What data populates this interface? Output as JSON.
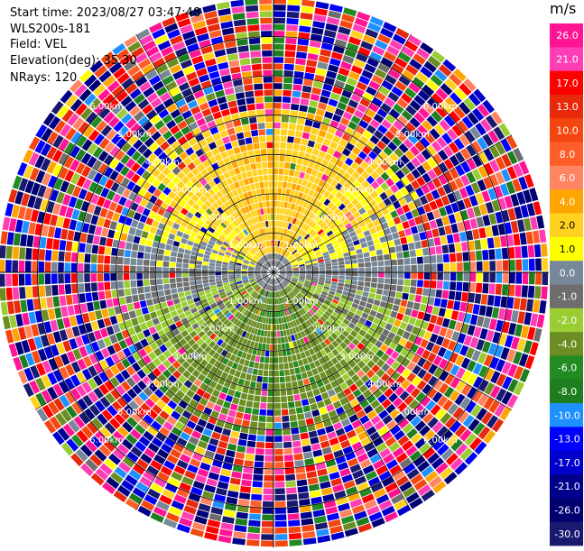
{
  "info": {
    "start_time": "Start time: 2023/08/27 03:47:48",
    "instrument": "WLS200s-181",
    "field": "Field: VEL",
    "elevation": "Elevation(deg): 35.30",
    "nrays": "NRays: 120"
  },
  "chart_data": {
    "type": "heatmap",
    "subtype": "polar-ppi",
    "field": "VEL",
    "units": "m/s",
    "n_rays": 120,
    "elevation_deg": 35.3,
    "range_rings": [
      {
        "label": "1.00km",
        "range_km": 1.0
      },
      {
        "label": "2.00km",
        "range_km": 2.0
      },
      {
        "label": "3.00km",
        "range_km": 3.0
      },
      {
        "label": "4.00km",
        "range_km": 4.0
      },
      {
        "label": "5.00km",
        "range_km": 5.0
      },
      {
        "label": "6.00km",
        "range_km": 6.0
      }
    ],
    "max_range_km": 7.0,
    "colorbar": {
      "title": "m/s",
      "ticks": [
        "26.0",
        "21.0",
        "17.0",
        "13.0",
        "10.0",
        "8.0",
        "6.0",
        "4.0",
        "2.0",
        "1.0",
        "0.0",
        "-1.0",
        "-2.0",
        "-4.0",
        "-6.0",
        "-8.0",
        "-10.0",
        "-13.0",
        "-17.0",
        "-21.0",
        "-26.0",
        "-30.0"
      ],
      "bins": [
        {
          "from": 26,
          "to": 30,
          "color": "#ff1493"
        },
        {
          "from": 21,
          "to": 26,
          "color": "#ff3db5"
        },
        {
          "from": 17,
          "to": 21,
          "color": "#ff0000"
        },
        {
          "from": 13,
          "to": 17,
          "color": "#e8290b"
        },
        {
          "from": 10,
          "to": 13,
          "color": "#f4470f"
        },
        {
          "from": 8,
          "to": 10,
          "color": "#ff5e2a"
        },
        {
          "from": 6,
          "to": 8,
          "color": "#ff8562"
        },
        {
          "from": 4,
          "to": 6,
          "color": "#ffa500"
        },
        {
          "from": 2,
          "to": 4,
          "color": "#ffd21f"
        },
        {
          "from": 1,
          "to": 2,
          "color": "#ffff00"
        },
        {
          "from": 0,
          "to": 1,
          "color": "#778899"
        },
        {
          "from": -1,
          "to": 0,
          "color": "#6e6e6e"
        },
        {
          "from": -2,
          "to": -1,
          "color": "#9acd32"
        },
        {
          "from": -4,
          "to": -2,
          "color": "#6b8e23"
        },
        {
          "from": -6,
          "to": -4,
          "color": "#228b22"
        },
        {
          "from": -8,
          "to": -6,
          "color": "#1e7d1e"
        },
        {
          "from": -10,
          "to": -8,
          "color": "#1e90ff"
        },
        {
          "from": -13,
          "to": -10,
          "color": "#0000ff"
        },
        {
          "from": -17,
          "to": -13,
          "color": "#0000cd"
        },
        {
          "from": -21,
          "to": -17,
          "color": "#00008b"
        },
        {
          "from": -26,
          "to": -21,
          "color": "#000070"
        },
        {
          "from": -30,
          "to": -26,
          "color": "#191970"
        }
      ]
    },
    "pattern_note_values": {
      "north_sector_mean_ms": 3.0,
      "south_sector_mean_ms": -4.0
    }
  }
}
